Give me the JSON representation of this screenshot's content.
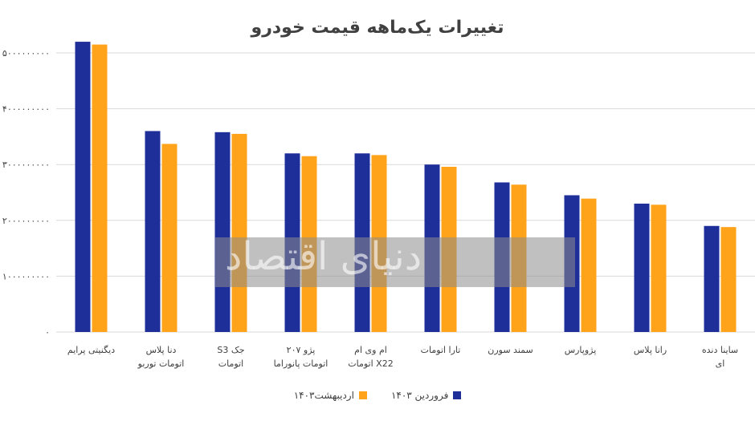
{
  "chart_data": {
    "type": "bar",
    "title": "تغییرات یک‌ماهه قیمت خودرو",
    "categories": [
      "دیگنیتی پرایم",
      "دنا پلاس اتومات توربو",
      "جک S3 اتومات",
      "پژو ۲۰۷ اتومات پانوراما",
      "ام وی ام X22 اتومات",
      "تارا اتومات",
      "سمند سورن",
      "پژوپارس",
      "رانا پلاس",
      "ساینا دنده ای"
    ],
    "series": [
      {
        "name": "فروردین ۱۴۰۳",
        "color": "#1f2f99",
        "values": [
          5200000000,
          3600000000,
          3580000000,
          3200000000,
          3200000000,
          3000000000,
          2680000000,
          2450000000,
          2300000000,
          1900000000
        ]
      },
      {
        "name": "اردیبهشت۱۴۰۳",
        "color": "#ffa31a",
        "values": [
          5150000000,
          3370000000,
          3550000000,
          3150000000,
          3170000000,
          2960000000,
          2640000000,
          2390000000,
          2280000000,
          1880000000
        ]
      }
    ],
    "y_tick_labels": [
      "۰",
      "۱۰۰۰۰۰۰۰۰۰",
      "۲۰۰۰۰۰۰۰۰۰",
      "۳۰۰۰۰۰۰۰۰۰",
      "۴۰۰۰۰۰۰۰۰۰",
      "۵۰۰۰۰۰۰۰۰۰"
    ],
    "ylim": [
      0,
      5000000000
    ],
    "grid": true,
    "legend_position": "bottom"
  },
  "watermark": {
    "label": "دنیای اقتصاد"
  }
}
